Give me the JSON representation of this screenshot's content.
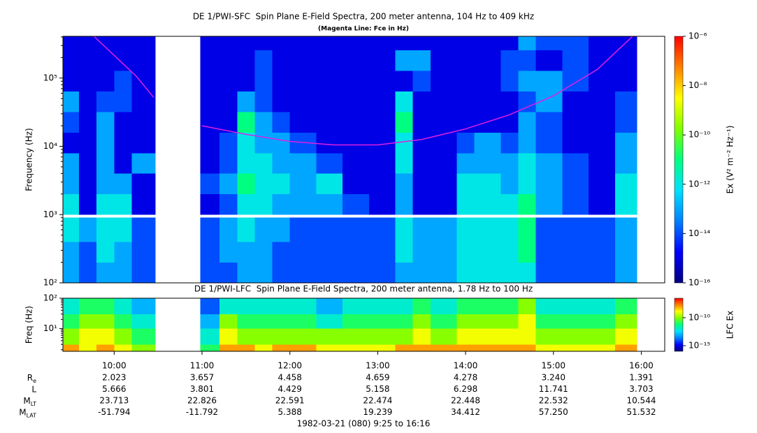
{
  "chart_data": [
    {
      "type": "heatmap",
      "title": "DE 1/PWI-SFC  Spin Plane E-Field Spectra, 200 meter antenna, 104 Hz to 409 kHz",
      "subtitle": "(Magenta Line: Fce in Hz)",
      "y_label": "Frequency (Hz)",
      "log_y": true,
      "xlim": [
        9.4167,
        16.2667
      ],
      "ylim": [
        100,
        409000
      ],
      "yticks": [
        {
          "value": 100,
          "label": "10²"
        },
        {
          "value": 1000,
          "label": "10³"
        },
        {
          "value": 10000,
          "label": "10⁴"
        },
        {
          "value": 100000,
          "label": "10⁵"
        }
      ],
      "x_bins": [
        9.417,
        9.6,
        9.8,
        10.0,
        10.2,
        10.47,
        10.98,
        11.2,
        11.4,
        11.6,
        11.8,
        12.0,
        12.3,
        12.6,
        12.9,
        13.2,
        13.4,
        13.6,
        13.9,
        14.1,
        14.4,
        14.6,
        14.8,
        15.1,
        15.4,
        15.7,
        15.95,
        16.267
      ],
      "y_bins": [
        100,
        200,
        400,
        900,
        1000,
        2000,
        4000,
        8000,
        16000,
        32000,
        64000,
        128000,
        256000,
        409000
      ],
      "z": [
        [
          1e-13,
          1e-14,
          1e-13,
          1e-13,
          1e-14,
          null,
          1e-14,
          1e-14,
          1e-13,
          1e-13,
          1e-14,
          1e-14,
          1e-14,
          1e-14,
          1e-14,
          1e-13,
          1e-13,
          1e-13,
          1e-12,
          1e-12,
          1e-12,
          1e-12,
          1e-14,
          1e-14,
          1e-14,
          1e-13,
          null
        ],
        [
          1e-13,
          1e-14,
          1e-12,
          1e-13,
          1e-14,
          null,
          1e-14,
          1e-13,
          1e-13,
          1e-13,
          1e-14,
          1e-14,
          1e-14,
          1e-14,
          1e-14,
          1e-12,
          1e-13,
          1e-13,
          1e-12,
          1e-12,
          1e-12,
          1e-11,
          1e-14,
          1e-14,
          1e-14,
          1e-13,
          null
        ],
        [
          1e-12,
          1e-13,
          1e-12,
          1e-12,
          1e-14,
          null,
          1e-14,
          1e-13,
          1e-12,
          1e-13,
          1e-13,
          1e-14,
          1e-14,
          1e-14,
          1e-14,
          1e-12,
          1e-13,
          1e-13,
          1e-12,
          1e-12,
          1e-12,
          1e-11,
          1e-14,
          1e-14,
          1e-14,
          1e-13,
          null
        ],
        [
          null,
          null,
          null,
          null,
          null,
          null,
          null,
          null,
          null,
          null,
          null,
          null,
          null,
          null,
          null,
          null,
          null,
          null,
          null,
          null,
          null,
          null,
          null,
          null,
          null,
          null,
          null
        ],
        [
          1e-12,
          1e-15,
          1e-12,
          1e-12,
          1e-15,
          null,
          1e-15,
          1e-14,
          1e-12,
          1e-12,
          1e-13,
          1e-13,
          1e-13,
          1e-14,
          1e-15,
          1e-13,
          1e-15,
          1e-15,
          1e-12,
          1e-12,
          1e-12,
          1e-11,
          1e-13,
          1e-14,
          1e-15,
          1e-12,
          null
        ],
        [
          1e-13,
          1e-15,
          1e-13,
          1e-13,
          1e-15,
          null,
          1e-14,
          1e-13,
          1e-11,
          1e-12,
          1e-12,
          1e-13,
          1e-12,
          1e-15,
          1e-15,
          1e-13,
          1e-15,
          1e-15,
          1e-12,
          1e-12,
          1e-13,
          1e-12,
          1e-13,
          1e-14,
          1e-15,
          1e-12,
          null
        ],
        [
          1e-13,
          1e-15,
          1e-13,
          1e-15,
          1e-13,
          null,
          1e-15,
          1e-14,
          1e-12,
          1e-12,
          1e-13,
          1e-13,
          1e-14,
          1e-15,
          1e-15,
          1e-12,
          1e-15,
          1e-15,
          1e-13,
          1e-13,
          1e-13,
          1e-12,
          1e-13,
          1e-14,
          1e-15,
          1e-13,
          null
        ],
        [
          1e-15,
          1e-15,
          1e-13,
          1e-15,
          1e-15,
          null,
          1e-15,
          1e-14,
          1e-12,
          1e-13,
          1e-13,
          1e-14,
          1e-15,
          1e-15,
          1e-15,
          1e-12,
          1e-15,
          1e-15,
          1e-14,
          1e-13,
          1e-14,
          1e-13,
          1e-14,
          1e-15,
          1e-15,
          1e-13,
          null
        ],
        [
          1e-14,
          1e-15,
          1e-13,
          1e-15,
          1e-15,
          null,
          1e-15,
          1e-15,
          1e-11,
          1e-13,
          1e-14,
          1e-15,
          1e-15,
          1e-15,
          1e-15,
          1e-11,
          1e-15,
          1e-15,
          1e-15,
          1e-15,
          1e-15,
          1e-13,
          1e-14,
          1e-15,
          1e-15,
          1e-14,
          null
        ],
        [
          1e-13,
          1e-15,
          1e-14,
          1e-14,
          1e-15,
          null,
          1e-15,
          1e-15,
          1e-13,
          1e-14,
          1e-15,
          1e-15,
          1e-15,
          1e-15,
          1e-15,
          1e-12,
          1e-15,
          1e-15,
          1e-15,
          1e-15,
          1e-15,
          1e-14,
          1e-13,
          1e-15,
          1e-15,
          1e-14,
          null
        ],
        [
          1e-15,
          1e-15,
          1e-15,
          1e-14,
          1e-15,
          null,
          1e-15,
          1e-15,
          1e-15,
          1e-14,
          1e-15,
          1e-15,
          1e-15,
          1e-15,
          1e-15,
          1e-15,
          1e-14,
          1e-15,
          1e-15,
          1e-15,
          1e-14,
          1e-13,
          1e-13,
          1e-14,
          1e-15,
          1e-15,
          null
        ],
        [
          1e-15,
          1e-15,
          1e-15,
          1e-15,
          1e-15,
          null,
          1e-15,
          1e-15,
          1e-15,
          1e-14,
          1e-15,
          1e-15,
          1e-15,
          1e-15,
          1e-15,
          1e-13,
          1e-13,
          1e-15,
          1e-15,
          1e-15,
          1e-14,
          1e-14,
          1e-15,
          1e-14,
          1e-15,
          1e-15,
          null
        ],
        [
          1e-15,
          1e-15,
          1e-15,
          1e-15,
          1e-15,
          null,
          1e-15,
          1e-15,
          1e-15,
          1e-15,
          1e-15,
          1e-15,
          1e-15,
          1e-15,
          1e-15,
          1e-15,
          1e-15,
          1e-15,
          1e-15,
          1e-15,
          1e-15,
          1e-13,
          1e-14,
          1e-14,
          1e-15,
          1e-15,
          null
        ]
      ],
      "colors": [
        "#000080",
        "#0000ff",
        "#0080ff",
        "#00e0ff",
        "#00ff80",
        "#80ff00",
        "#ffff00",
        "#ff8000",
        "#ff0000"
      ],
      "colorbar": {
        "label": "Ex (V² m⁻² Hz⁻¹)",
        "lim": [
          1e-16,
          1e-06
        ],
        "ticks": [
          {
            "value": 1e-06,
            "label": "10⁻⁶"
          },
          {
            "value": 1e-08,
            "label": "10⁻⁸"
          },
          {
            "value": 1e-10,
            "label": "10⁻¹⁰"
          },
          {
            "value": 1e-12,
            "label": "10⁻¹²"
          },
          {
            "value": 1e-14,
            "label": "10⁻¹⁴"
          },
          {
            "value": 1e-16,
            "label": "10⁻¹⁶"
          }
        ]
      },
      "line": {
        "color": "#e020e0",
        "x": [
          9.77,
          10.0,
          10.25,
          10.45,
          10.7,
          11.0,
          11.5,
          12.0,
          12.5,
          13.0,
          13.5,
          14.0,
          14.5,
          15.0,
          15.5,
          15.9
        ],
        "values": [
          409000,
          215000,
          107000,
          52000,
          null,
          20000,
          15000,
          11800,
          10500,
          10500,
          12600,
          18000,
          29000,
          55000,
          134000,
          409000
        ]
      }
    },
    {
      "type": "heatmap",
      "title": "DE 1/PWI-LFC  Spin Plane E-Field Spectra, 200 meter antenna, 1.78 Hz to 100 Hz",
      "y_label": "Freq (Hz)",
      "log_y": true,
      "xlim": [
        9.4167,
        16.2667
      ],
      "ylim": [
        1.78,
        100
      ],
      "yticks": [
        {
          "value": 100,
          "label": "10²"
        },
        {
          "value": 10,
          "label": "10¹"
        }
      ],
      "xticks": [
        {
          "value": 10,
          "label": "10:00"
        },
        {
          "value": 11,
          "label": "11:00"
        },
        {
          "value": 12,
          "label": "12:00"
        },
        {
          "value": 13,
          "label": "13:00"
        },
        {
          "value": 14,
          "label": "14:00"
        },
        {
          "value": 15,
          "label": "15:00"
        },
        {
          "value": 16,
          "label": "16:00"
        }
      ],
      "x_bins": [
        9.417,
        9.6,
        9.8,
        10.0,
        10.2,
        10.47,
        10.98,
        11.2,
        11.4,
        11.6,
        11.8,
        12.0,
        12.3,
        12.6,
        12.9,
        13.2,
        13.4,
        13.6,
        13.9,
        14.1,
        14.4,
        14.6,
        14.8,
        15.1,
        15.4,
        15.7,
        15.95,
        16.267
      ],
      "y_bins": [
        1.78,
        3,
        10,
        30,
        100
      ],
      "z": [
        [
          1e-08,
          1e-09,
          1e-08,
          1e-09,
          1e-10,
          null,
          1e-11,
          1e-08,
          1e-08,
          1e-09,
          1e-08,
          1e-08,
          1e-09,
          1e-09,
          1e-09,
          1e-08,
          1e-08,
          1e-08,
          1e-08,
          1e-08,
          1e-08,
          1e-08,
          1e-09,
          1e-09,
          1e-09,
          1e-08,
          null
        ],
        [
          1e-10,
          1e-09,
          1e-09,
          1e-10,
          1e-11,
          null,
          1e-12,
          1e-09,
          1e-10,
          1e-10,
          1e-10,
          1e-10,
          1e-10,
          1e-10,
          1e-10,
          1e-10,
          1e-09,
          1e-10,
          1e-09,
          1e-09,
          1e-09,
          1e-09,
          1e-10,
          1e-10,
          1e-10,
          1e-09,
          null
        ],
        [
          1e-11,
          1e-10,
          1e-10,
          1e-11,
          1e-12,
          null,
          1e-13,
          1e-10,
          1e-11,
          1e-11,
          1e-11,
          1e-11,
          1e-12,
          1e-11,
          1e-11,
          1e-11,
          1e-10,
          1e-11,
          1e-10,
          1e-10,
          1e-10,
          1e-09,
          1e-11,
          1e-11,
          1e-11,
          1e-10,
          null
        ],
        [
          1e-12,
          1e-11,
          1e-11,
          1e-12,
          1e-13,
          null,
          1e-14,
          1e-12,
          1e-12,
          1e-12,
          1e-12,
          1e-12,
          1e-13,
          1e-12,
          1e-12,
          1e-12,
          1e-11,
          1e-12,
          1e-11,
          1e-11,
          1e-11,
          1e-10,
          1e-12,
          1e-12,
          1e-12,
          1e-11,
          null
        ]
      ],
      "colors": [
        "#000080",
        "#0000ff",
        "#0080ff",
        "#00e0ff",
        "#00ff80",
        "#80ff00",
        "#ffff00",
        "#ff8000",
        "#ff0000"
      ],
      "colorbar": {
        "label": "LFC Ex",
        "lim": [
          1e-16,
          3e-07
        ],
        "ticks": [
          {
            "value": 1e-10,
            "label": "10⁻¹⁰"
          },
          {
            "value": 1e-15,
            "label": "10⁻¹⁵"
          }
        ]
      }
    }
  ],
  "ephemeris": {
    "rows": [
      {
        "main": "R",
        "sub": "e",
        "values": [
          "2.023",
          "3.657",
          "4.458",
          "4.659",
          "4.278",
          "3.240",
          "1.391"
        ]
      },
      {
        "main": "L",
        "values": [
          "5.666",
          "3.801",
          "4.429",
          "5.158",
          "6.298",
          "11.741",
          "3.703"
        ]
      },
      {
        "main": "M",
        "sub": "LT",
        "values": [
          "23.713",
          "22.826",
          "22.591",
          "22.474",
          "22.448",
          "22.532",
          "10.544"
        ]
      },
      {
        "main": "M",
        "sub": "LAT",
        "values": [
          "-51.794",
          "-11.792",
          "5.388",
          "19.239",
          "34.412",
          "57.250",
          "51.532"
        ]
      }
    ]
  },
  "footer": "1982-03-21 (080) 9:25 to 16:16"
}
